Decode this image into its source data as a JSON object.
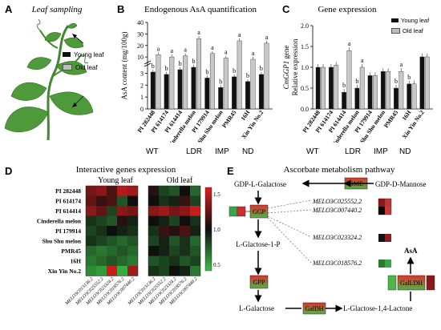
{
  "panel_a": {
    "letter": "A",
    "title": "Leaf sampling",
    "legend": [
      "Young leaf",
      "Old leaf"
    ]
  },
  "panel_b": {
    "letter": "B",
    "title": "Endogenous AsA quantification",
    "ylabel": "AsA content (mg/100g)"
  },
  "panel_c": {
    "letter": "C",
    "title": "Gene expression",
    "ylabel_italic": "CmGGP1",
    "ylabel_rest": " gene",
    "ylabel2": "Relative expression",
    "legend": [
      "Young leaf",
      "Old leaf"
    ]
  },
  "groups": [
    {
      "label": "WT",
      "color": "#e8202a"
    },
    {
      "label": "LDR",
      "color": "#e6821e"
    },
    {
      "label": "IMP",
      "color": "#2f6fd0"
    },
    {
      "label": "ND",
      "color": "#d41ad4"
    }
  ],
  "panel_d": {
    "letter": "D",
    "title": "Interactive genes expression",
    "young_title": "Young leaf",
    "old_title": "Old leaf",
    "colorbar_ticks": [
      "1.5",
      "1.0",
      "0.5"
    ]
  },
  "panel_e": {
    "letter": "E",
    "title": "Ascorbate metabolism pathway",
    "nodes": {
      "gdp_gal": "GDP-L-Galactose",
      "gdp_man": "GDP-D-Mannose",
      "gme": "GME",
      "ggp": "GGP",
      "l_gal1p": "L-Glactose-1-P",
      "gpp": "GPP",
      "l_gal": "L-Galactose",
      "galdh": "GalDH",
      "lactone": "L-Glactose-1,4-Lactone",
      "galldh": "GalLDH",
      "asa": "AsA"
    },
    "genes": [
      "MELO3C025552.2",
      "MELO3C007440.2",
      "MELO3C023324.2",
      "MELO3C018576.2"
    ]
  },
  "chart_data": [
    {
      "type": "bar",
      "title": "Endogenous AsA quantification",
      "ylabel": "AsA content (mg/100g)",
      "y_ticks_lower": [
        "0",
        "1",
        "2",
        "3"
      ],
      "y_ticks_upper": [
        "10",
        "20",
        "30",
        "40"
      ],
      "categories": [
        "PI 282448",
        "PI 614174",
        "PI 614414",
        "Cinderella melon",
        "PI 179914",
        "Shu Shu melon",
        "PMR45",
        "16H",
        "Xin Yin No.2"
      ],
      "series": [
        {
          "name": "Young leaf",
          "values": [
            3.1,
            2.9,
            3.3,
            3.5,
            2.6,
            1.8,
            2.7,
            2.3,
            2.9
          ],
          "letters": [
            "b",
            "b",
            "b",
            "b",
            "b",
            "b",
            "b",
            "b",
            "b"
          ]
        },
        {
          "name": "Old leaf",
          "values": [
            12,
            10,
            11,
            26,
            13,
            9,
            24,
            8,
            22
          ],
          "letters": [
            "a",
            "a",
            "a",
            "a",
            "a",
            "a",
            "a",
            "a",
            "a"
          ]
        }
      ]
    },
    {
      "type": "bar",
      "title": "Gene expression",
      "ylabel": "CmGGP1 gene Relative expression",
      "y_ticks": [
        "0.0",
        "0.5",
        "1.0",
        "1.5",
        "2.0"
      ],
      "ylim": [
        0,
        2.0
      ],
      "categories": [
        "PI 282448",
        "PI 614174",
        "PI 614414",
        "Cinderella melon",
        "PI 179914",
        "Shu Shu melon",
        "PMR45",
        "16H",
        "Xin Yin No.2"
      ],
      "series": [
        {
          "name": "Young leaf",
          "values": [
            1.0,
            1.0,
            0.4,
            0.5,
            0.8,
            0.9,
            0.5,
            0.6,
            1.25
          ],
          "letters": [
            "",
            "",
            "b",
            "b",
            "",
            "",
            "b",
            "b",
            ""
          ]
        },
        {
          "name": "Old leaf",
          "values": [
            1.0,
            1.05,
            1.4,
            1.0,
            0.8,
            0.9,
            0.9,
            0.6,
            1.25
          ],
          "letters": [
            "",
            "",
            "a",
            "a",
            "",
            "",
            "a",
            "",
            ""
          ]
        }
      ]
    },
    {
      "type": "heatmap",
      "title": "Interactive genes expression",
      "rows": [
        "PI 282448",
        "PI 614174",
        "PI 614414",
        "Cinderella melon",
        "PI 179914",
        "Shu Shu melon",
        "PMR45",
        "16H",
        "Xin Yin No.2"
      ],
      "columns": [
        "MELO3C013136.2",
        "MELO3C025552.2",
        "MELO3C023324.2",
        "MELO3C018576.2",
        "MELO3C007440.2"
      ],
      "colorbar": {
        "min": 0.5,
        "max": 1.5
      },
      "young_leaf": [
        [
          1.25,
          1.3,
          1.15,
          1.4,
          1.35
        ],
        [
          1.2,
          1.1,
          1.15,
          0.8,
          1.0
        ],
        [
          1.3,
          1.2,
          0.85,
          1.3,
          1.25
        ],
        [
          0.9,
          0.85,
          0.8,
          1.05,
          0.95
        ],
        [
          0.85,
          0.9,
          1.0,
          0.95,
          0.9
        ],
        [
          0.9,
          0.85,
          0.8,
          0.75,
          0.8
        ],
        [
          0.75,
          0.7,
          0.75,
          0.8,
          0.75
        ],
        [
          0.7,
          0.75,
          0.8,
          0.75,
          0.7
        ],
        [
          0.65,
          0.6,
          1.45,
          0.55,
          1.35
        ]
      ],
      "old_leaf": [
        [
          1.05,
          0.85,
          0.8,
          1.0,
          0.75
        ],
        [
          1.0,
          0.9,
          0.95,
          1.1,
          0.85
        ],
        [
          1.3,
          1.35,
          1.25,
          1.3,
          1.45
        ],
        [
          1.0,
          0.95,
          0.85,
          1.0,
          0.9
        ],
        [
          0.9,
          1.1,
          1.05,
          1.15,
          0.95
        ],
        [
          0.85,
          0.95,
          0.8,
          0.9,
          0.75
        ],
        [
          1.0,
          0.95,
          0.85,
          0.9,
          0.8
        ],
        [
          0.8,
          0.85,
          0.9,
          0.8,
          0.85
        ],
        [
          0.9,
          0.85,
          1.0,
          0.95,
          0.7
        ]
      ]
    }
  ]
}
